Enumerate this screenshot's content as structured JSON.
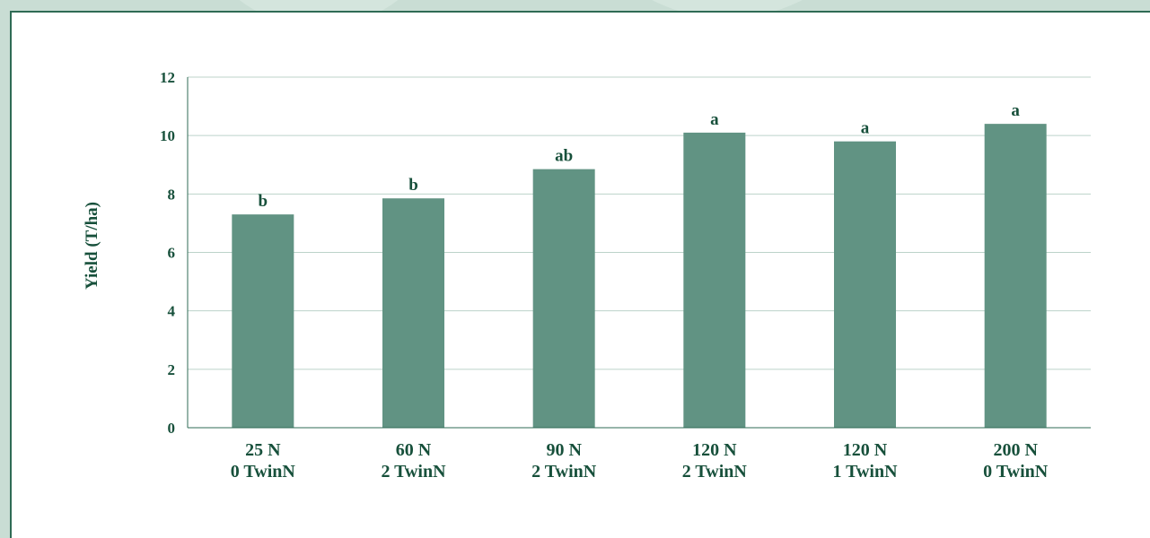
{
  "chart_data": {
    "type": "bar",
    "title": "",
    "xlabel": "",
    "ylabel": "Yield (T/ha)",
    "ylim": [
      0,
      12
    ],
    "yticks": [
      0,
      2,
      4,
      6,
      8,
      10,
      12
    ],
    "grid": true,
    "categories": [
      [
        "25 N",
        "0 TwinN"
      ],
      [
        "60 N",
        "2 TwinN"
      ],
      [
        "90 N",
        "2 TwinN"
      ],
      [
        "120 N",
        "2 TwinN"
      ],
      [
        "120 N",
        "1 TwinN"
      ],
      [
        "200 N",
        "0 TwinN"
      ]
    ],
    "values": [
      7.3,
      7.85,
      8.85,
      10.1,
      9.8,
      10.4
    ],
    "data_labels": [
      "b",
      "b",
      "ab",
      "a",
      "a",
      "a"
    ],
    "colors": {
      "bar": "#619383",
      "text": "#17503b",
      "grid": "#bcd3ca",
      "axis": "#2f6b55"
    }
  }
}
